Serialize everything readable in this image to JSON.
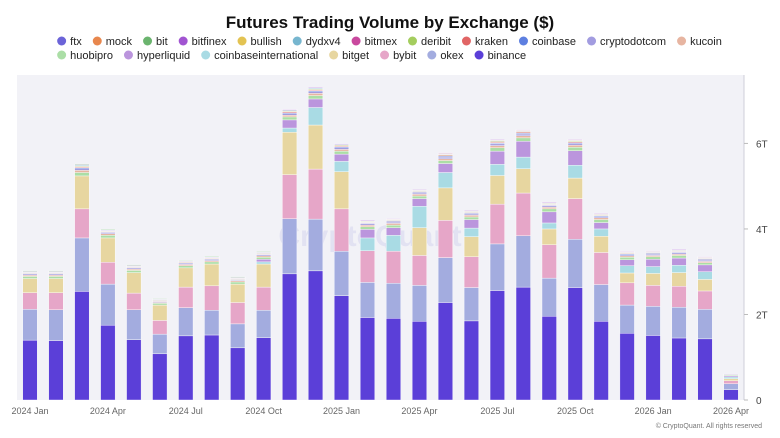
{
  "chart_data": {
    "type": "bar",
    "stacked": true,
    "title": "Futures Trading Volume by Exchange ($)",
    "y_unit": "T",
    "ylim": [
      0,
      7.6
    ],
    "y_ticks": [
      0,
      2,
      4,
      6
    ],
    "y_tick_labels": [
      "0",
      "2T",
      "4T",
      "6T"
    ],
    "y_axis_position": "right",
    "legend_position": "top",
    "grid": false,
    "watermark": "CryptoQuant",
    "footer": "© CryptoQuant. All rights reserved",
    "categories": [
      "2024-01",
      "2024-02",
      "2024-03",
      "2024-04",
      "2024-05",
      "2024-06",
      "2024-07",
      "2024-08",
      "2024-09",
      "2024-10",
      "2024-11",
      "2024-12",
      "2025-01",
      "2025-02",
      "2025-03",
      "2025-04",
      "2025-05",
      "2025-06",
      "2025-07",
      "2025-08",
      "2025-09",
      "2025-10",
      "2025-11",
      "2025-12",
      "2026-01",
      "2026-02",
      "2026-03",
      "2026-04"
    ],
    "x_tick_labels": [
      {
        "label": "2024 Jan",
        "index": 0
      },
      {
        "label": "2024 Apr",
        "index": 3
      },
      {
        "label": "2024 Jul",
        "index": 6
      },
      {
        "label": "2024 Oct",
        "index": 9
      },
      {
        "label": "2025 Jan",
        "index": 12
      },
      {
        "label": "2025 Apr",
        "index": 15
      },
      {
        "label": "2025 Jul",
        "index": 18
      },
      {
        "label": "2025 Oct",
        "index": 21
      },
      {
        "label": "2026 Jan",
        "index": 24
      },
      {
        "label": "2026 Apr",
        "index": 27
      }
    ],
    "series": [
      {
        "name": "binance",
        "color": "#5b3fd8",
        "values": [
          1.4,
          1.39,
          2.54,
          1.75,
          1.41,
          1.08,
          1.5,
          1.52,
          1.22,
          1.46,
          2.95,
          3.02,
          2.44,
          1.93,
          1.91,
          1.84,
          2.28,
          1.85,
          2.56,
          2.64,
          1.96,
          2.63,
          1.84,
          1.56,
          1.51,
          1.45,
          1.43,
          0.24
        ]
      },
      {
        "name": "okex",
        "color": "#a3acdf",
        "values": [
          0.72,
          0.72,
          1.25,
          0.96,
          0.7,
          0.46,
          0.66,
          0.58,
          0.56,
          0.64,
          1.29,
          1.21,
          1.04,
          0.82,
          0.82,
          0.84,
          1.05,
          0.78,
          1.09,
          1.2,
          0.89,
          1.13,
          0.86,
          0.66,
          0.68,
          0.72,
          0.69,
          0.14
        ]
      },
      {
        "name": "bybit",
        "color": "#e6a6c8",
        "values": [
          0.39,
          0.4,
          0.68,
          0.51,
          0.39,
          0.32,
          0.48,
          0.57,
          0.5,
          0.54,
          1.03,
          1.17,
          0.99,
          0.74,
          0.75,
          0.7,
          0.87,
          0.72,
          0.93,
          1.0,
          0.78,
          0.95,
          0.75,
          0.52,
          0.49,
          0.49,
          0.43,
          0.07
        ]
      },
      {
        "name": "bitget",
        "color": "#e7d6a0",
        "values": [
          0.33,
          0.33,
          0.77,
          0.57,
          0.48,
          0.36,
          0.45,
          0.51,
          0.43,
          0.54,
          0.99,
          1.03,
          0.87,
          0.0,
          0.0,
          0.65,
          0.76,
          0.47,
          0.67,
          0.57,
          0.37,
          0.48,
          0.38,
          0.23,
          0.28,
          0.32,
          0.27,
          0.05
        ]
      },
      {
        "name": "coinbaseinternational",
        "color": "#a9dbe4",
        "values": [
          0.0,
          0.0,
          0.0,
          0.0,
          0.0,
          0.0,
          0.0,
          0.0,
          0.0,
          0.05,
          0.1,
          0.41,
          0.24,
          0.3,
          0.37,
          0.5,
          0.36,
          0.2,
          0.26,
          0.27,
          0.14,
          0.3,
          0.17,
          0.17,
          0.16,
          0.17,
          0.18,
          0.04
        ]
      },
      {
        "name": "hyperliquid",
        "color": "#bb95dd",
        "values": [
          0.0,
          0.0,
          0.0,
          0.0,
          0.0,
          0.0,
          0.0,
          0.0,
          0.0,
          0.06,
          0.19,
          0.2,
          0.17,
          0.2,
          0.18,
          0.18,
          0.21,
          0.2,
          0.31,
          0.37,
          0.26,
          0.34,
          0.15,
          0.14,
          0.17,
          0.17,
          0.16,
          0.03
        ]
      },
      {
        "name": "huobipro",
        "color": "#abdea6",
        "values": [
          0.05,
          0.05,
          0.08,
          0.06,
          0.05,
          0.04,
          0.05,
          0.05,
          0.05,
          0.05,
          0.07,
          0.08,
          0.07,
          0.06,
          0.06,
          0.06,
          0.07,
          0.06,
          0.08,
          0.08,
          0.07,
          0.08,
          0.07,
          0.06,
          0.06,
          0.06,
          0.05,
          0.02
        ]
      },
      {
        "name": "kucoin",
        "color": "#e7b5a1",
        "values": [
          0.03,
          0.03,
          0.05,
          0.04,
          0.03,
          0.02,
          0.03,
          0.03,
          0.03,
          0.03,
          0.04,
          0.05,
          0.04,
          0.04,
          0.04,
          0.04,
          0.04,
          0.04,
          0.05,
          0.05,
          0.04,
          0.05,
          0.04,
          0.03,
          0.03,
          0.03,
          0.03,
          0.01
        ]
      },
      {
        "name": "cryptodotcom",
        "color": "#a29ce0",
        "values": [
          0.03,
          0.03,
          0.04,
          0.03,
          0.03,
          0.02,
          0.03,
          0.03,
          0.02,
          0.03,
          0.04,
          0.04,
          0.04,
          0.03,
          0.03,
          0.03,
          0.04,
          0.03,
          0.04,
          0.04,
          0.03,
          0.04,
          0.03,
          0.03,
          0.03,
          0.03,
          0.03,
          0.01
        ]
      },
      {
        "name": "coinbase",
        "color": "#5d7fe0",
        "values": [
          0.01,
          0.01,
          0.02,
          0.01,
          0.01,
          0.01,
          0.01,
          0.01,
          0.01,
          0.01,
          0.02,
          0.02,
          0.02,
          0.02,
          0.02,
          0.02,
          0.02,
          0.02,
          0.02,
          0.02,
          0.02,
          0.02,
          0.02,
          0.02,
          0.02,
          0.02,
          0.02,
          0.0
        ]
      },
      {
        "name": "kraken",
        "color": "#e16565",
        "values": [
          0.01,
          0.01,
          0.02,
          0.01,
          0.01,
          0.01,
          0.01,
          0.01,
          0.01,
          0.01,
          0.02,
          0.02,
          0.02,
          0.01,
          0.01,
          0.01,
          0.02,
          0.01,
          0.02,
          0.02,
          0.01,
          0.02,
          0.01,
          0.01,
          0.01,
          0.01,
          0.01,
          0.0
        ]
      },
      {
        "name": "deribit",
        "color": "#a4cd5e",
        "values": [
          0.01,
          0.01,
          0.02,
          0.01,
          0.01,
          0.01,
          0.01,
          0.01,
          0.01,
          0.01,
          0.02,
          0.02,
          0.02,
          0.01,
          0.01,
          0.01,
          0.02,
          0.01,
          0.02,
          0.02,
          0.01,
          0.02,
          0.01,
          0.01,
          0.01,
          0.01,
          0.01,
          0.0
        ]
      },
      {
        "name": "bitmex",
        "color": "#c9499e",
        "values": [
          0.01,
          0.01,
          0.01,
          0.01,
          0.01,
          0.01,
          0.01,
          0.01,
          0.01,
          0.01,
          0.01,
          0.01,
          0.01,
          0.01,
          0.01,
          0.01,
          0.01,
          0.01,
          0.01,
          0.01,
          0.01,
          0.01,
          0.01,
          0.01,
          0.01,
          0.01,
          0.01,
          0.0
        ]
      },
      {
        "name": "dydxv4",
        "color": "#77b6cf",
        "values": [
          0.01,
          0.01,
          0.02,
          0.01,
          0.01,
          0.01,
          0.01,
          0.01,
          0.01,
          0.01,
          0.02,
          0.02,
          0.01,
          0.01,
          0.01,
          0.01,
          0.01,
          0.01,
          0.01,
          0.01,
          0.01,
          0.01,
          0.01,
          0.01,
          0.01,
          0.01,
          0.01,
          0.0
        ]
      },
      {
        "name": "bullish",
        "color": "#e3c352",
        "values": [
          0.0,
          0.0,
          0.0,
          0.0,
          0.0,
          0.0,
          0.0,
          0.0,
          0.0,
          0.0,
          0.0,
          0.0,
          0.0,
          0.01,
          0.01,
          0.01,
          0.01,
          0.01,
          0.01,
          0.01,
          0.01,
          0.01,
          0.01,
          0.01,
          0.01,
          0.01,
          0.01,
          0.0
        ]
      },
      {
        "name": "bitfinex",
        "color": "#a154d1",
        "values": [
          0.01,
          0.01,
          0.01,
          0.01,
          0.01,
          0.01,
          0.01,
          0.01,
          0.01,
          0.01,
          0.01,
          0.01,
          0.01,
          0.01,
          0.01,
          0.01,
          0.01,
          0.01,
          0.01,
          0.01,
          0.01,
          0.01,
          0.01,
          0.01,
          0.01,
          0.01,
          0.01,
          0.0
        ]
      },
      {
        "name": "bit",
        "color": "#6bb46e",
        "values": [
          0.01,
          0.01,
          0.01,
          0.01,
          0.01,
          0.01,
          0.01,
          0.01,
          0.01,
          0.01,
          0.0,
          0.0,
          0.0,
          0.0,
          0.0,
          0.0,
          0.0,
          0.0,
          0.0,
          0.0,
          0.0,
          0.0,
          0.0,
          0.0,
          0.0,
          0.0,
          0.0,
          0.0
        ]
      },
      {
        "name": "mock",
        "color": "#e8874d",
        "values": [
          0.0,
          0.0,
          0.0,
          0.0,
          0.0,
          0.0,
          0.0,
          0.0,
          0.0,
          0.0,
          0.0,
          0.0,
          0.0,
          0.0,
          0.0,
          0.0,
          0.0,
          0.0,
          0.0,
          0.0,
          0.0,
          0.0,
          0.0,
          0.0,
          0.0,
          0.0,
          0.0,
          0.0
        ]
      },
      {
        "name": "ftx",
        "color": "#6b63d8",
        "values": [
          0.0,
          0.0,
          0.0,
          0.0,
          0.0,
          0.0,
          0.0,
          0.0,
          0.0,
          0.0,
          0.0,
          0.0,
          0.0,
          0.0,
          0.0,
          0.0,
          0.0,
          0.0,
          0.0,
          0.0,
          0.0,
          0.0,
          0.0,
          0.0,
          0.0,
          0.0,
          0.0,
          0.0
        ]
      }
    ],
    "legend_order": [
      "ftx",
      "mock",
      "bit",
      "bitfinex",
      "bullish",
      "dydxv4",
      "bitmex",
      "deribit",
      "kraken",
      "coinbase",
      "cryptodotcom",
      "kucoin",
      "huobipro",
      "hyperliquid",
      "coinbaseinternational",
      "bitget",
      "bybit",
      "okex",
      "binance"
    ]
  }
}
